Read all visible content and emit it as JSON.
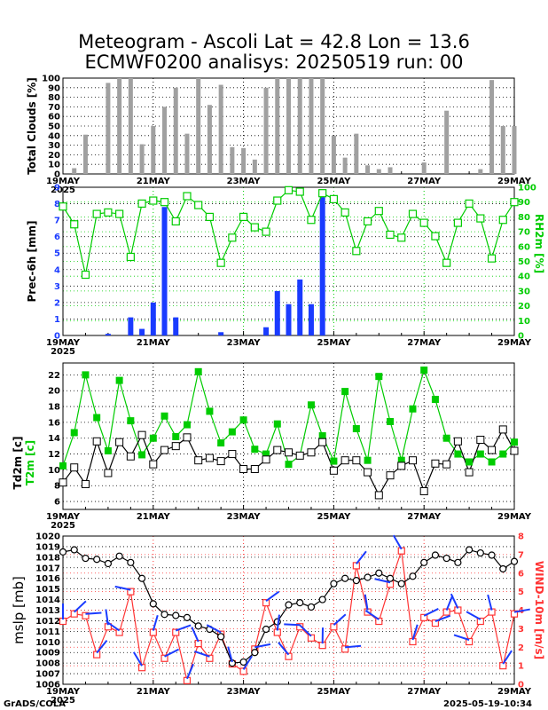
{
  "title_line1": "Meteogram - Ascoli Lat = 42.8 Lon = 13.6",
  "title_line2": "ECMWF0200 analisys: 20250519 run: 00",
  "footer_left": "GrADS/COLA",
  "footer_right": "2025-05-19-10:34",
  "colors": {
    "green": "#00cc00",
    "blue": "#1a3bff",
    "red": "#ff3333",
    "gray": "#a0a0a0"
  },
  "x_ticks": [
    "19MAY",
    "21MAY",
    "23MAY",
    "25MAY",
    "27MAY",
    "29MAY"
  ],
  "year_label": "2025",
  "chart_data": [
    {
      "type": "bar",
      "name": "clouds",
      "ylabel": "Total Clouds [%]",
      "ylim": [
        0,
        100
      ],
      "yticks": [
        0,
        10,
        20,
        30,
        40,
        50,
        60,
        70,
        80,
        90,
        100
      ],
      "x_step_hours": 6,
      "values": [
        0,
        6,
        41,
        0,
        95,
        100,
        100,
        31,
        50,
        70,
        90,
        42,
        100,
        72,
        93,
        28,
        27,
        15,
        90,
        100,
        100,
        100,
        100,
        100,
        40,
        17,
        42,
        9,
        5,
        7,
        0,
        0,
        12,
        0,
        66,
        0,
        0,
        5,
        98,
        50,
        50
      ],
      "grid": true
    },
    {
      "type": "bar+line",
      "name": "precip-rh",
      "ylabel": "Prec-6h [mm]",
      "ylabel_right": "RH2m [%]",
      "ylim": [
        0,
        9
      ],
      "yticks": [
        0,
        1,
        2,
        3,
        4,
        5,
        6,
        7,
        8,
        9
      ],
      "ylim_right": [
        0,
        100
      ],
      "yticks_right": [
        0,
        10,
        20,
        30,
        40,
        50,
        60,
        70,
        80,
        90,
        100
      ],
      "precip": [
        0,
        0,
        0,
        0,
        0.1,
        0,
        1.1,
        0.4,
        2,
        7.8,
        1.1,
        0,
        0,
        0,
        0.2,
        0,
        0,
        0,
        0.5,
        2.7,
        1.9,
        3.4,
        1.9,
        8.4,
        0,
        0,
        0,
        0,
        0,
        0,
        0,
        0,
        0,
        0,
        0,
        0,
        0,
        0,
        0,
        0,
        0
      ],
      "rh": [
        87,
        75,
        41,
        82,
        83,
        82,
        53,
        89,
        91,
        90,
        77,
        94,
        88,
        80,
        49,
        66,
        80,
        73,
        70,
        91,
        98,
        97,
        78,
        96,
        92,
        83,
        57,
        77,
        84,
        68,
        66,
        82,
        76,
        67,
        49,
        76,
        89,
        79,
        52,
        78,
        90
      ],
      "grid": true
    },
    {
      "type": "line",
      "name": "temperature",
      "ylabel": "Td2m [c]",
      "ylabel2": "T2m [c]",
      "ylim": [
        5,
        23.5
      ],
      "yticks": [
        6,
        8,
        10,
        12,
        14,
        16,
        18,
        20,
        22
      ],
      "series": [
        {
          "name": "T2m",
          "values": [
            10.5,
            14.7,
            22.0,
            16.6,
            12.4,
            21.3,
            16.2,
            11.9,
            14.0,
            16.8,
            14.2,
            15.7,
            22.4,
            17.4,
            13.4,
            14.8,
            16.3,
            12.6,
            12.0,
            15.8,
            10.7,
            11.8,
            18.2,
            14.3,
            11.1,
            19.9,
            15.2,
            11.2,
            21.8,
            16.1,
            11.2,
            17.7,
            22.6,
            18.9,
            14.0,
            12.0,
            11.0,
            12.0,
            11.0,
            12.0,
            13.5
          ]
        },
        {
          "name": "Td2m",
          "values": [
            8.4,
            10.3,
            8.2,
            13.6,
            9.6,
            13.5,
            11.7,
            14.4,
            10.7,
            12.5,
            13.0,
            14.1,
            11.2,
            11.5,
            11.1,
            12.0,
            10.1,
            10.1,
            11.3,
            12.5,
            12.2,
            11.8,
            12.2,
            13.5,
            9.9,
            11.2,
            11.2,
            9.7,
            6.8,
            9.3,
            10.5,
            11.2,
            7.3,
            10.8,
            10.7,
            13.6,
            9.7,
            13.8,
            12.5,
            15.1,
            12.4
          ]
        }
      ],
      "grid": true
    },
    {
      "type": "line",
      "name": "pressure-wind",
      "ylabel": "mslp [mb]",
      "ylabel_right": "WIND-10m [m/s]",
      "ylim": [
        1006,
        1020
      ],
      "yticks": [
        1006,
        1007,
        1008,
        1009,
        1010,
        1011,
        1012,
        1013,
        1014,
        1015,
        1016,
        1017,
        1018,
        1019,
        1020
      ],
      "ylim_right": [
        0,
        8
      ],
      "yticks_right": [
        0,
        1,
        2,
        3,
        4,
        5,
        6,
        7,
        8
      ],
      "series": [
        {
          "name": "mslp",
          "values": [
            1018.5,
            1018.7,
            1017.9,
            1017.8,
            1017.4,
            1018.1,
            1017.5,
            1016.0,
            1013.6,
            1012.6,
            1012.5,
            1012.3,
            1011.5,
            1011.2,
            1010.5,
            1008.0,
            1008.1,
            1009.0,
            1011.2,
            1011.9,
            1013.5,
            1013.7,
            1013.3,
            1014.0,
            1015.5,
            1016.0,
            1015.8,
            1016.1,
            1016.5,
            1016.0,
            1015.5,
            1016.2,
            1017.5,
            1018.2,
            1017.9,
            1017.5,
            1018.7,
            1018.4,
            1018.2,
            1016.9,
            1017.6
          ]
        },
        {
          "name": "wind",
          "values": [
            3.4,
            3.8,
            3.7,
            1.6,
            3.1,
            2.8,
            5.0,
            0.9,
            2.8,
            1.4,
            2.8,
            0.2,
            2.2,
            1.4,
            2.7,
            1.1,
            0.7,
            1.9,
            4.4,
            2.8,
            1.5,
            3.1,
            2.5,
            2.1,
            3.1,
            1.9,
            6.4,
            3.9,
            3.4,
            5.4,
            7.2,
            2.3,
            3.6,
            3.3,
            3.9,
            4.0,
            2.3,
            3.4,
            3.9,
            1.0,
            3.8
          ]
        }
      ],
      "grid": true
    }
  ]
}
